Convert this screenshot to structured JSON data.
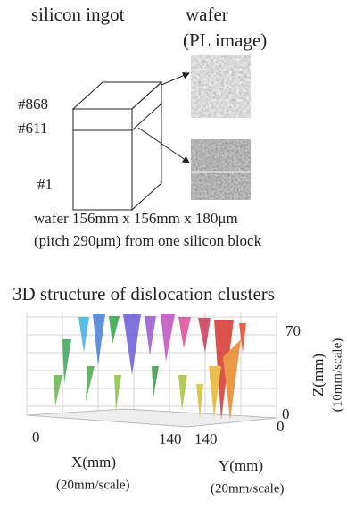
{
  "top": {
    "ingot_label": "silicon ingot",
    "wafer_label": "wafer",
    "wafer_sublabel": "(PL image)",
    "slices": [
      "#868",
      "#611",
      "#1"
    ],
    "caption": [
      "wafer 156mm x 156mm x 180μm",
      "(pitch 290μm) from one silicon block"
    ]
  },
  "bottom": {
    "title": "3D structure of dislocation clusters",
    "z_ticks": [
      "70",
      "0"
    ],
    "z_label": "Z(mm)",
    "z_scale": "(10mm/scale)",
    "x_ticks": [
      "0",
      "140"
    ],
    "x_label": "X(mm)",
    "x_scale": "(20mm/scale)",
    "y_ticks": [
      "140",
      "0"
    ],
    "y_label": "Y(mm)",
    "y_scale": "(20mm/scale)"
  }
}
